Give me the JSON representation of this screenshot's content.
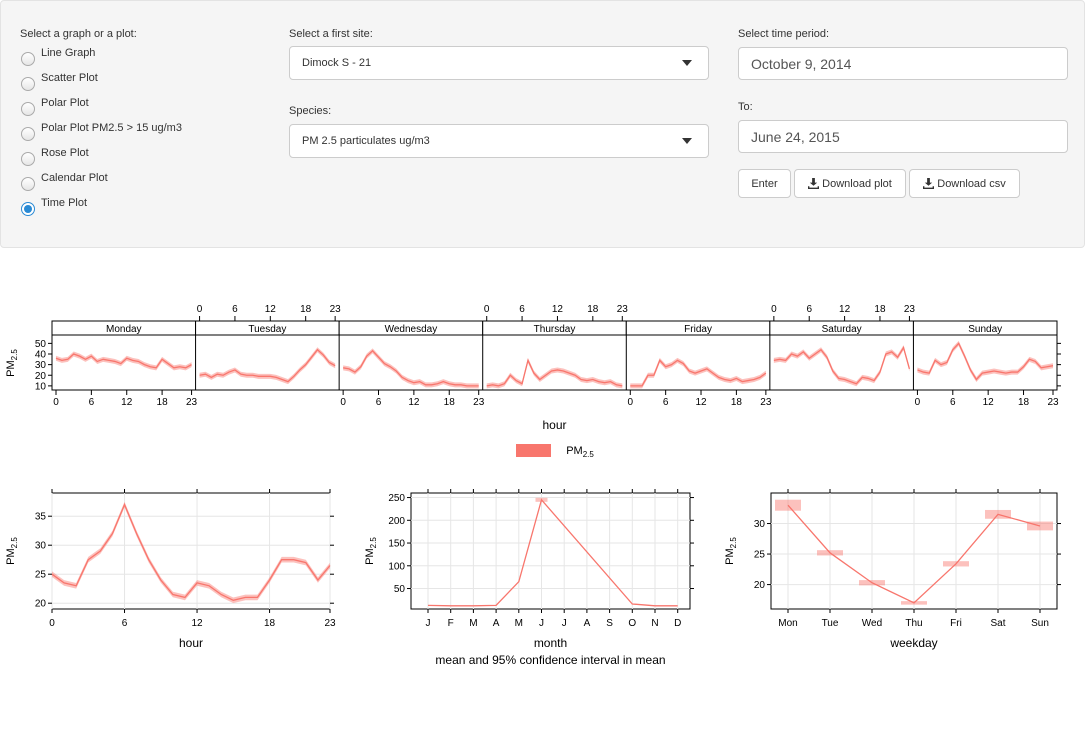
{
  "controls": {
    "graph_label": "Select a graph or a plot:",
    "graph_options": [
      "Line Graph",
      "Scatter Plot",
      "Polar Plot",
      "Polar Plot PM2.5 > 15 ug/m3",
      "Rose Plot",
      "Calendar Plot",
      "Time Plot"
    ],
    "graph_selected": "Time Plot",
    "site_label": "Select a first site:",
    "site_value": "Dimock S - 21",
    "species_label": "Species:",
    "species_value": "PM 2.5 particulates ug/m3",
    "time_label": "Select time period:",
    "from_date": "October 9, 2014",
    "to_label": "To:",
    "to_date": "June 24, 2015",
    "enter_button": "Enter",
    "download_plot_button": "Download plot",
    "download_csv_button": "Download csv",
    "accent_color": "#2a8ad4"
  },
  "chart_data": [
    {
      "type": "line",
      "panels": [
        "Monday",
        "Tuesday",
        "Wednesday",
        "Thursday",
        "Friday",
        "Saturday",
        "Sunday"
      ],
      "x_ticks": [
        "0",
        "6",
        "12",
        "18",
        "23"
      ],
      "xlabel": "hour",
      "ylabel": "PM2.5",
      "y_ticks": [
        10,
        20,
        30,
        40,
        50
      ],
      "ylim": [
        8,
        56
      ],
      "legend": "PM2.5",
      "series_color": "#f8766d",
      "series": [
        {
          "name": "Monday",
          "values": [
            36,
            34,
            35,
            40,
            38,
            35,
            38,
            33,
            35,
            34,
            33,
            31,
            36,
            34,
            33,
            30,
            28,
            27,
            35,
            31,
            27,
            28,
            27,
            30
          ]
        },
        {
          "name": "Tuesday",
          "values": [
            20,
            21,
            18,
            21,
            20,
            23,
            25,
            21,
            20,
            20,
            19,
            19,
            19,
            18,
            16,
            14,
            19,
            25,
            30,
            37,
            44,
            39,
            32,
            29
          ]
        },
        {
          "name": "Wednesday",
          "values": [
            27,
            26,
            23,
            28,
            38,
            43,
            37,
            31,
            28,
            24,
            18,
            15,
            13,
            14,
            11,
            11,
            12,
            14,
            12,
            11,
            11,
            10,
            10,
            10
          ]
        },
        {
          "name": "Thursday",
          "values": [
            10,
            11,
            10,
            12,
            20,
            15,
            12,
            34,
            22,
            16,
            20,
            24,
            25,
            24,
            22,
            20,
            16,
            15,
            16,
            14,
            13,
            14,
            11,
            10
          ]
        },
        {
          "name": "Friday",
          "values": [
            10,
            10,
            10,
            20,
            20,
            34,
            28,
            30,
            34,
            31,
            24,
            22,
            24,
            26,
            22,
            18,
            16,
            15,
            17,
            14,
            15,
            16,
            18,
            22
          ]
        },
        {
          "name": "Saturday",
          "values": [
            34,
            35,
            34,
            40,
            38,
            42,
            36,
            40,
            44,
            37,
            24,
            17,
            16,
            14,
            12,
            18,
            17,
            15,
            23,
            40,
            42,
            37,
            46,
            26
          ]
        },
        {
          "name": "Sunday",
          "values": [
            25,
            23,
            22,
            34,
            30,
            32,
            44,
            50,
            38,
            25,
            16,
            22,
            23,
            24,
            23,
            22,
            23,
            23,
            28,
            35,
            33,
            27,
            28,
            29
          ]
        }
      ]
    },
    {
      "type": "line",
      "x": [
        0,
        1,
        2,
        3,
        4,
        5,
        6,
        7,
        8,
        9,
        10,
        11,
        12,
        13,
        14,
        15,
        16,
        17,
        18,
        19,
        20,
        21,
        22,
        23
      ],
      "values": [
        25,
        23.5,
        23,
        27.5,
        29,
        32,
        37,
        32,
        27.5,
        24,
        21.5,
        21,
        23.5,
        23,
        21.5,
        20.5,
        21,
        21,
        24,
        27.5,
        27.5,
        27,
        24,
        26.5
      ],
      "x_ticks": [
        "0",
        "6",
        "12",
        "18",
        "23"
      ],
      "xlabel": "hour",
      "ylabel": "PM2.5",
      "y_ticks": [
        20,
        25,
        30,
        35
      ],
      "ylim": [
        19,
        39
      ],
      "series_color": "#f8766d"
    },
    {
      "type": "line",
      "categories": [
        "J",
        "F",
        "M",
        "A",
        "M",
        "J",
        "J",
        "A",
        "S",
        "O",
        "N",
        "D"
      ],
      "values": [
        13,
        12,
        12,
        13,
        65,
        245,
        null,
        null,
        null,
        16,
        12,
        12
      ],
      "xlabel": "month",
      "subtitle": "mean and 95% confidence interval in mean",
      "ylabel": "PM2.5",
      "y_ticks": [
        50,
        100,
        150,
        200,
        250
      ],
      "ylim": [
        5,
        260
      ],
      "series_color": "#f8766d"
    },
    {
      "type": "line",
      "categories": [
        "Mon",
        "Tue",
        "Wed",
        "Thu",
        "Fri",
        "Sat",
        "Sun"
      ],
      "values": [
        33,
        25.2,
        20.3,
        17,
        23.4,
        31.5,
        29.6
      ],
      "xlabel": "weekday",
      "ylabel": "PM2.5",
      "y_ticks": [
        20,
        25,
        30
      ],
      "ylim": [
        16,
        35
      ],
      "series_color": "#f8766d"
    }
  ]
}
